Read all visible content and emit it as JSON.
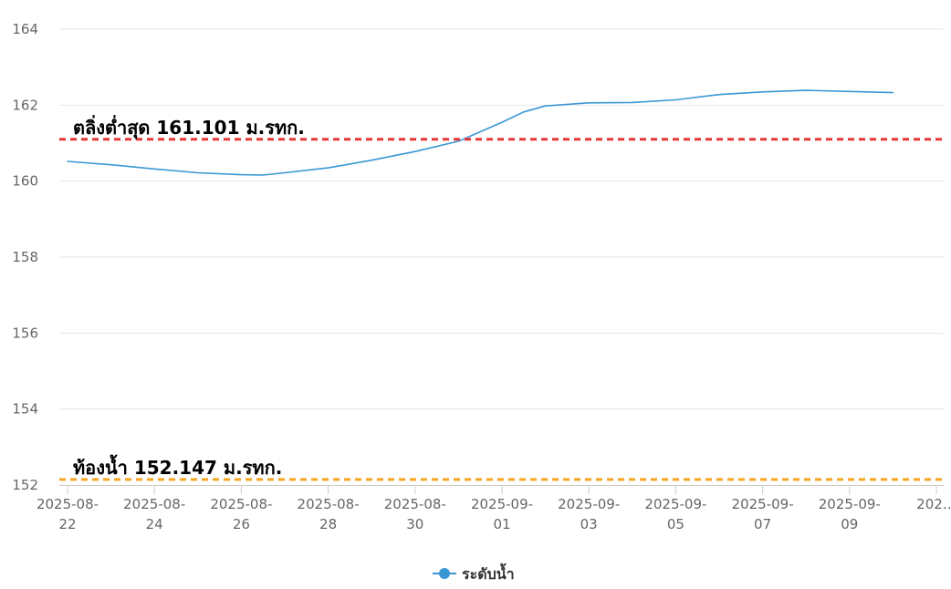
{
  "chart_data": {
    "type": "line",
    "title": "",
    "xlabel": "",
    "ylabel": "",
    "ylim": [
      152,
      164
    ],
    "yticks": [
      152,
      154,
      156,
      158,
      160,
      162,
      164
    ],
    "grid": true,
    "legend_position": "bottom-center",
    "x_tick_labels": [
      {
        "line1": "2025-08-",
        "line2": "22"
      },
      {
        "line1": "2025-08-",
        "line2": "24"
      },
      {
        "line1": "2025-08-",
        "line2": "26"
      },
      {
        "line1": "2025-08-",
        "line2": "28"
      },
      {
        "line1": "2025-08-",
        "line2": "30"
      },
      {
        "line1": "2025-09-",
        "line2": "01"
      },
      {
        "line1": "2025-09-",
        "line2": "03"
      },
      {
        "line1": "2025-09-",
        "line2": "05"
      },
      {
        "line1": "2025-09-",
        "line2": "07"
      },
      {
        "line1": "2025-09-",
        "line2": "09"
      },
      {
        "line1": "202…",
        "line2": ""
      }
    ],
    "series": [
      {
        "name": "ระดับน้ำ",
        "color": "#3a97d4",
        "points": [
          {
            "x": "2025-08-22",
            "y": 160.52
          },
          {
            "x": "2025-08-23",
            "y": 160.43
          },
          {
            "x": "2025-08-24",
            "y": 160.32
          },
          {
            "x": "2025-08-25",
            "y": 160.22
          },
          {
            "x": "2025-08-26",
            "y": 160.17
          },
          {
            "x": "2025-08-26T12:00",
            "y": 160.16
          },
          {
            "x": "2025-08-27",
            "y": 160.22
          },
          {
            "x": "2025-08-28",
            "y": 160.35
          },
          {
            "x": "2025-08-29",
            "y": 160.55
          },
          {
            "x": "2025-08-30",
            "y": 160.78
          },
          {
            "x": "2025-08-31",
            "y": 161.05
          },
          {
            "x": "2025-09-01",
            "y": 161.55
          },
          {
            "x": "2025-09-01T12:00",
            "y": 161.82
          },
          {
            "x": "2025-09-02",
            "y": 161.98
          },
          {
            "x": "2025-09-03",
            "y": 162.06
          },
          {
            "x": "2025-09-04",
            "y": 162.07
          },
          {
            "x": "2025-09-05",
            "y": 162.14
          },
          {
            "x": "2025-09-06",
            "y": 162.28
          },
          {
            "x": "2025-09-07",
            "y": 162.35
          },
          {
            "x": "2025-09-08",
            "y": 162.39
          },
          {
            "x": "2025-09-09",
            "y": 162.36
          },
          {
            "x": "2025-09-10",
            "y": 162.33
          }
        ]
      }
    ],
    "x_domain": [
      "2025-08-22",
      "2025-09-11"
    ],
    "reference_lines": [
      {
        "label": "ตลิ่งต่ำสุด 161.101 ม.รทก.",
        "value": 161.101,
        "color": "#e53935"
      },
      {
        "label": "ท้องน้ำ 152.147 ม.รทก.",
        "value": 152.147,
        "color": "#f5a623"
      }
    ]
  }
}
